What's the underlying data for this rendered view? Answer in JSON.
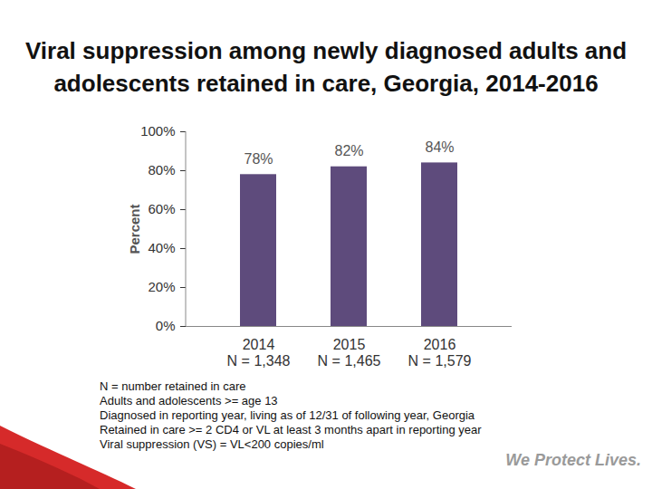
{
  "chart_data": {
    "type": "bar",
    "title": "Viral suppression among newly diagnosed adults and\nadolescents retained in care, Georgia, 2014-2016",
    "y_label": "Percent",
    "categories": [
      "2014\nN = 1,348",
      "2015\nN = 1,465",
      "2016\nN = 1,579"
    ],
    "values": [
      78,
      82,
      84
    ],
    "value_labels": [
      "78%",
      "82%",
      "84%"
    ],
    "color": "#5e4b7c",
    "ylim": [
      0,
      100
    ],
    "yticks": [
      {
        "value": 0,
        "label": "0%"
      },
      {
        "value": 20,
        "label": "20%"
      },
      {
        "value": 40,
        "label": "40%"
      },
      {
        "value": 60,
        "label": "60%"
      },
      {
        "value": 80,
        "label": "80%"
      },
      {
        "value": 100,
        "label": "100%"
      }
    ],
    "data_labels": true,
    "grid": false,
    "notes": [
      "N = number retained in care",
      "Adults and adolescents >= age 13",
      "Diagnosed in reporting year, living as of 12/31 of following year, Georgia",
      "Retained in care >= 2 CD4 or VL at least 3 months apart in reporting year",
      "Viral suppression (VS) = VL<200 copies/ml"
    ],
    "footer": "We Protect Lives."
  }
}
